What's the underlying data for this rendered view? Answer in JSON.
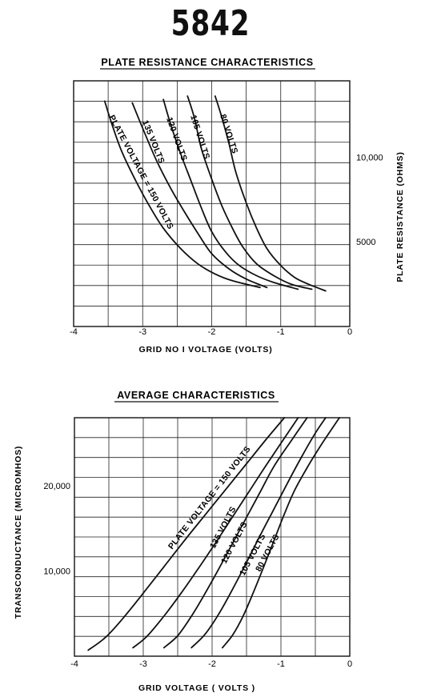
{
  "page": {
    "title": "5842"
  },
  "chart_data": [
    {
      "type": "line",
      "title": "PLATE RESISTANCE CHARACTERISTICS",
      "xlabel": "GRID NO I VOLTAGE  (VOLTS)",
      "ylabel": "PLATE RESISTANCE  (OHMS)",
      "xlim": [
        -4,
        0
      ],
      "ylim": [
        0,
        14500
      ],
      "xticks": [
        -4,
        -3,
        -2,
        -1,
        0
      ],
      "xtick_labels": [
        "-4",
        "-3",
        "-2",
        "-1",
        "0"
      ],
      "yticks": [
        5000,
        10000
      ],
      "ytick_labels": [
        "5000",
        "10,000"
      ],
      "y_axis_side": "right",
      "grid": true,
      "series": [
        {
          "name": "PLATE VOLTAGE = 150 VOLTS",
          "x": [
            -3.55,
            -3.45,
            -3.3,
            -3.1,
            -2.9,
            -2.7,
            -2.45,
            -2.2,
            -1.95,
            -1.7,
            -1.3
          ],
          "y": [
            13300,
            12000,
            10300,
            8600,
            7100,
            5800,
            4600,
            3700,
            3100,
            2700,
            2300
          ]
        },
        {
          "name": "135 VOLTS",
          "x": [
            -3.15,
            -3.0,
            -2.8,
            -2.6,
            -2.4,
            -2.2,
            -2.0,
            -1.75,
            -1.5,
            -1.2
          ],
          "y": [
            13200,
            11700,
            9800,
            8200,
            6800,
            5500,
            4300,
            3400,
            2800,
            2300
          ]
        },
        {
          "name": "120 VOLTS",
          "x": [
            -2.7,
            -2.6,
            -2.45,
            -2.3,
            -2.15,
            -2.0,
            -1.8,
            -1.6,
            -1.35,
            -1.1,
            -0.75
          ],
          "y": [
            13400,
            12000,
            10200,
            8600,
            7000,
            5600,
            4400,
            3600,
            3000,
            2600,
            2200
          ]
        },
        {
          "name": "105 VOLTS",
          "x": [
            -2.35,
            -2.25,
            -2.15,
            -2.0,
            -1.85,
            -1.7,
            -1.55,
            -1.35,
            -1.1,
            -0.85,
            -0.55
          ],
          "y": [
            13600,
            12300,
            10500,
            8700,
            7100,
            5800,
            4700,
            3700,
            3000,
            2500,
            2200
          ]
        },
        {
          "name": "80 VOLTS",
          "x": [
            -1.95,
            -1.85,
            -1.75,
            -1.65,
            -1.5,
            -1.35,
            -1.2,
            -1.0,
            -0.8,
            -0.6,
            -0.35
          ],
          "y": [
            13600,
            12300,
            10800,
            9100,
            7300,
            5800,
            4600,
            3600,
            2900,
            2500,
            2100
          ]
        }
      ]
    },
    {
      "type": "line",
      "title": "AVERAGE CHARACTERISTICS",
      "xlabel": "GRID VOLTAGE   ( VOLTS )",
      "ylabel": "TRANSCONDUCTANCE  (MICROMHOS)",
      "xlim": [
        -4,
        0
      ],
      "ylim": [
        0,
        28000
      ],
      "xticks": [
        -4,
        -3,
        -2,
        -1,
        0
      ],
      "xtick_labels": [
        "-4",
        "-3",
        "-2",
        "-1",
        "0"
      ],
      "yticks": [
        10000,
        20000
      ],
      "ytick_labels": [
        "10,000",
        "20,000"
      ],
      "y_axis_side": "left",
      "grid": true,
      "series": [
        {
          "name": "PLATE VOLTAGE = 150 VOLTS",
          "x": [
            -3.8,
            -3.55,
            -3.3,
            -3.0,
            -2.7,
            -2.4,
            -2.1,
            -1.8,
            -1.5,
            -1.2,
            -0.95
          ],
          "y": [
            700,
            2200,
            4400,
            7400,
            10500,
            13600,
            16600,
            19600,
            22600,
            25600,
            28000
          ]
        },
        {
          "name": "135 VOLTS",
          "x": [
            -3.15,
            -2.95,
            -2.7,
            -2.45,
            -2.2,
            -1.95,
            -1.7,
            -1.45,
            -1.2,
            -0.95,
            -0.75
          ],
          "y": [
            1000,
            2300,
            4700,
            7400,
            10300,
            13300,
            16400,
            19500,
            22600,
            25600,
            28000
          ]
        },
        {
          "name": "120 VOLTS",
          "x": [
            -2.7,
            -2.5,
            -2.3,
            -2.1,
            -1.9,
            -1.7,
            -1.5,
            -1.3,
            -1.1,
            -0.85,
            -0.62
          ],
          "y": [
            1000,
            2400,
            4700,
            7400,
            10300,
            13300,
            16300,
            19300,
            22300,
            25300,
            28000
          ]
        },
        {
          "name": "105 VOLTS",
          "x": [
            -2.3,
            -2.1,
            -1.9,
            -1.7,
            -1.5,
            -1.3,
            -1.1,
            -0.9,
            -0.7,
            -0.5,
            -0.35
          ],
          "y": [
            1000,
            2600,
            5000,
            7900,
            11000,
            14200,
            17300,
            20400,
            23400,
            26200,
            28000
          ]
        },
        {
          "name": "80 VOLTS",
          "x": [
            -1.85,
            -1.7,
            -1.55,
            -1.4,
            -1.25,
            -1.1,
            -0.95,
            -0.8,
            -0.6,
            -0.4,
            -0.15
          ],
          "y": [
            1000,
            2500,
            4700,
            7500,
            10500,
            13600,
            16700,
            19500,
            22400,
            25000,
            28000
          ]
        }
      ]
    }
  ]
}
